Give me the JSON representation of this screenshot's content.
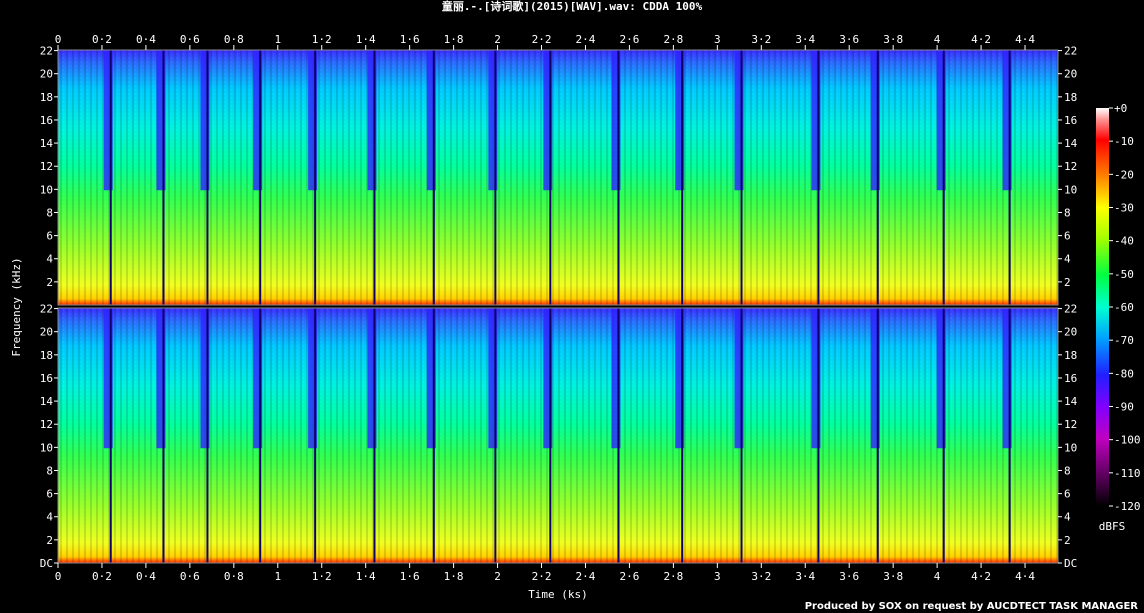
{
  "title": "童丽.-.[诗词歌](2015)[WAV].wav: CDDA 100%",
  "footer": "Produced by SOX on request by AUCDTECT TASK MANAGER",
  "chart_data": {
    "type": "heatmap",
    "xlabel": "Time (ks)",
    "ylabel": "Frequency (kHz)",
    "xlim": [
      0,
      4.55
    ],
    "x_ticks": [
      "0",
      "0·2",
      "0·4",
      "0·6",
      "0·8",
      "1",
      "1·2",
      "1·4",
      "1·6",
      "1·8",
      "2",
      "2·2",
      "2·4",
      "2·6",
      "2·8",
      "3",
      "3·2",
      "3·4",
      "3·6",
      "3·8",
      "4",
      "4·2",
      "4·4"
    ],
    "y_ticks": [
      "DC",
      "2",
      "4",
      "6",
      "8",
      "10",
      "12",
      "14",
      "16",
      "18",
      "20",
      "22"
    ],
    "ylim": [
      0,
      22.05
    ],
    "channels": 2,
    "track_boundaries_ks": [
      0.24,
      0.48,
      0.68,
      0.92,
      1.17,
      1.44,
      1.71,
      1.99,
      2.24,
      2.55,
      2.84,
      3.11,
      3.46,
      3.73,
      4.03,
      4.33
    ],
    "colorbar": {
      "label": "dBFS",
      "ticks": [
        "+0",
        "-10",
        "-20",
        "-30",
        "-40",
        "-50",
        "-60",
        "-70",
        "-80",
        "-90",
        "-100",
        "-110",
        "-120"
      ],
      "range": [
        -120,
        0
      ]
    }
  }
}
